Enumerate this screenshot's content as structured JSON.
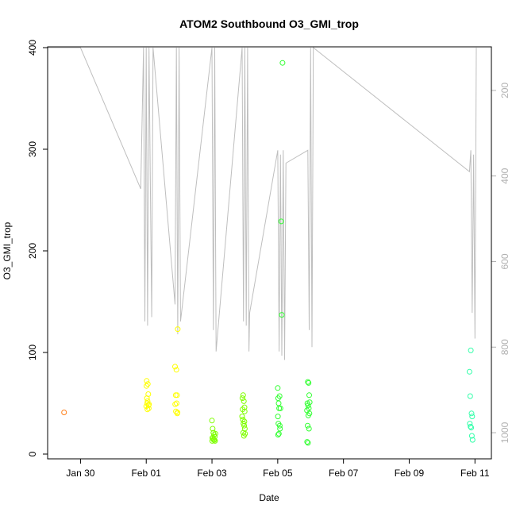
{
  "chart_data": {
    "type": "scatter",
    "title": "ATOM2 Southbound O3_GMI_trop",
    "xlabel": "Date",
    "ylabel": "O3_GMI_trop",
    "xlim": [
      "2017-01-29T00:00",
      "2017-02-11T12:00"
    ],
    "ylim": [
      0,
      400
    ],
    "x_ticks": [
      {
        "date": "2017-01-30",
        "label": "Jan 30"
      },
      {
        "date": "2017-02-01",
        "label": "Feb 01"
      },
      {
        "date": "2017-02-03",
        "label": "Feb 03"
      },
      {
        "date": "2017-02-05",
        "label": "Feb 05"
      },
      {
        "date": "2017-02-07",
        "label": "Feb 07"
      },
      {
        "date": "2017-02-09",
        "label": "Feb 09"
      },
      {
        "date": "2017-02-11",
        "label": "Feb 11"
      }
    ],
    "y_ticks": [
      0,
      100,
      200,
      300,
      400
    ],
    "y2_ticks": [
      200,
      400,
      600,
      800,
      1000
    ],
    "y2_range": [
      1050,
      100
    ],
    "grid": false,
    "series": [
      {
        "color": "#ff7f1a",
        "points": [
          [
            "2017-01-29T12:00",
            41
          ]
        ]
      },
      {
        "color": "#ffff00",
        "points": [
          [
            "2017-02-01T00:00",
            47
          ],
          [
            "2017-02-01T01:00",
            52
          ],
          [
            "2017-02-01T00:30",
            55
          ],
          [
            "2017-02-01T01:30",
            59
          ],
          [
            "2017-02-01T00:40",
            50
          ],
          [
            "2017-02-01T02:00",
            49
          ],
          [
            "2017-02-01T00:10",
            67
          ],
          [
            "2017-02-01T00:20",
            72
          ],
          [
            "2017-02-01T01:10",
            69
          ],
          [
            "2017-02-01T01:50",
            45
          ],
          [
            "2017-02-01T00:50",
            44
          ],
          [
            "2017-02-01T01:40",
            48
          ],
          [
            "2017-02-01T21:00",
            86
          ],
          [
            "2017-02-01T22:00",
            83
          ],
          [
            "2017-02-01T23:00",
            123
          ],
          [
            "2017-02-01T21:30",
            58
          ],
          [
            "2017-02-01T22:30",
            58
          ],
          [
            "2017-02-01T21:10",
            49
          ],
          [
            "2017-02-01T22:10",
            50
          ],
          [
            "2017-02-01T21:40",
            42
          ],
          [
            "2017-02-01T22:40",
            40
          ],
          [
            "2017-02-01T22:50",
            41
          ]
        ]
      },
      {
        "color": "#7fff00",
        "points": [
          [
            "2017-02-03T00:00",
            33
          ],
          [
            "2017-02-03T00:30",
            25
          ],
          [
            "2017-02-03T01:00",
            21
          ],
          [
            "2017-02-03T01:30",
            19
          ],
          [
            "2017-02-03T02:00",
            17
          ],
          [
            "2017-02-03T00:15",
            16
          ],
          [
            "2017-02-03T00:45",
            15
          ],
          [
            "2017-02-03T01:15",
            14
          ],
          [
            "2017-02-03T01:45",
            14
          ],
          [
            "2017-02-03T02:15",
            13
          ],
          [
            "2017-02-03T00:10",
            13
          ],
          [
            "2017-02-03T02:30",
            20
          ],
          [
            "2017-02-03T22:00",
            37
          ],
          [
            "2017-02-03T22:30",
            34
          ],
          [
            "2017-02-03T23:00",
            30
          ],
          [
            "2017-02-03T23:30",
            28
          ],
          [
            "2017-02-04T00:00",
            25
          ],
          [
            "2017-02-03T22:15",
            55
          ],
          [
            "2017-02-03T22:45",
            58
          ],
          [
            "2017-02-03T23:15",
            52
          ],
          [
            "2017-02-03T23:45",
            46
          ],
          [
            "2017-02-03T22:20",
            44
          ],
          [
            "2017-02-03T23:50",
            42
          ],
          [
            "2017-02-03T22:50",
            21
          ],
          [
            "2017-02-03T23:20",
            18
          ],
          [
            "2017-02-04T00:10",
            20
          ],
          [
            "2017-02-03T23:40",
            32
          ]
        ]
      },
      {
        "color": "#33ff33",
        "points": [
          [
            "2017-02-05T00:00",
            65
          ],
          [
            "2017-02-05T00:20",
            55
          ],
          [
            "2017-02-05T00:40",
            50
          ],
          [
            "2017-02-05T01:00",
            45
          ],
          [
            "2017-02-05T01:20",
            57
          ],
          [
            "2017-02-05T00:10",
            37
          ],
          [
            "2017-02-05T00:30",
            30
          ],
          [
            "2017-02-05T01:30",
            28
          ],
          [
            "2017-02-05T01:40",
            25
          ],
          [
            "2017-02-05T00:50",
            20
          ],
          [
            "2017-02-05T00:15",
            19
          ],
          [
            "2017-02-05T02:00",
            45
          ],
          [
            "2017-02-05T03:00",
            137
          ],
          [
            "2017-02-05T02:30",
            229
          ],
          [
            "2017-02-05T03:30",
            385
          ],
          [
            "2017-02-05T22:00",
            71
          ],
          [
            "2017-02-05T22:30",
            70
          ],
          [
            "2017-02-05T23:00",
            58
          ],
          [
            "2017-02-05T21:40",
            50
          ],
          [
            "2017-02-05T22:10",
            48
          ],
          [
            "2017-02-05T22:40",
            45
          ],
          [
            "2017-02-05T23:10",
            40
          ],
          [
            "2017-02-05T22:20",
            38
          ],
          [
            "2017-02-05T21:50",
            28
          ],
          [
            "2017-02-05T22:50",
            25
          ],
          [
            "2017-02-05T21:30",
            12
          ],
          [
            "2017-02-05T22:05",
            11
          ],
          [
            "2017-02-05T23:20",
            51
          ],
          [
            "2017-02-05T21:20",
            43
          ]
        ]
      },
      {
        "color": "#33ffaa",
        "points": [
          [
            "2017-02-10T20:00",
            81
          ],
          [
            "2017-02-10T20:30",
            57
          ],
          [
            "2017-02-10T21:00",
            102
          ],
          [
            "2017-02-10T21:30",
            40
          ],
          [
            "2017-02-10T22:00",
            37
          ],
          [
            "2017-02-10T20:15",
            30
          ],
          [
            "2017-02-10T20:45",
            27
          ],
          [
            "2017-02-10T21:15",
            26
          ],
          [
            "2017-02-10T21:45",
            18
          ],
          [
            "2017-02-10T22:15",
            14
          ]
        ]
      }
    ],
    "secondary_line": {
      "color": "#bebebe",
      "points": [
        [
          "2017-01-29T00:00",
          100
        ],
        [
          "2017-01-30T00:00",
          100
        ],
        [
          "2017-01-31T20:00",
          430
        ],
        [
          "2017-01-31T22:00",
          100
        ],
        [
          "2017-01-31T23:00",
          740
        ],
        [
          "2017-02-01T00:00",
          100
        ],
        [
          "2017-02-01T01:00",
          750
        ],
        [
          "2017-02-01T02:00",
          100
        ],
        [
          "2017-02-01T03:00",
          420
        ],
        [
          "2017-02-01T04:00",
          730
        ],
        [
          "2017-02-01T05:00",
          100
        ],
        [
          "2017-02-01T21:00",
          700
        ],
        [
          "2017-02-01T22:00",
          100
        ],
        [
          "2017-02-01T23:00",
          770
        ],
        [
          "2017-02-02T00:00",
          100
        ],
        [
          "2017-02-02T01:00",
          740
        ],
        [
          "2017-02-03T00:00",
          100
        ],
        [
          "2017-02-03T01:00",
          760
        ],
        [
          "2017-02-03T02:00",
          100
        ],
        [
          "2017-02-03T03:00",
          810
        ],
        [
          "2017-02-03T22:00",
          100
        ],
        [
          "2017-02-03T23:00",
          740
        ],
        [
          "2017-02-04T00:00",
          100
        ],
        [
          "2017-02-04T01:00",
          750
        ],
        [
          "2017-02-04T02:00",
          100
        ],
        [
          "2017-02-04T03:00",
          810
        ],
        [
          "2017-02-04T03:30",
          720
        ],
        [
          "2017-02-05T00:00",
          340
        ],
        [
          "2017-02-05T01:00",
          810
        ],
        [
          "2017-02-05T02:00",
          350
        ],
        [
          "2017-02-05T03:00",
          820
        ],
        [
          "2017-02-05T04:00",
          340
        ],
        [
          "2017-02-05T05:00",
          830
        ],
        [
          "2017-02-05T06:00",
          370
        ],
        [
          "2017-02-05T22:00",
          340
        ],
        [
          "2017-02-05T23:00",
          760
        ],
        [
          "2017-02-06T00:00",
          100
        ],
        [
          "2017-02-06T01:00",
          800
        ],
        [
          "2017-02-06T02:00",
          100
        ],
        [
          "2017-02-10T20:00",
          390
        ],
        [
          "2017-02-10T21:00",
          340
        ],
        [
          "2017-02-10T22:00",
          720
        ],
        [
          "2017-02-10T23:00",
          350
        ],
        [
          "2017-02-11T00:00",
          780
        ],
        [
          "2017-02-11T01:00",
          100
        ]
      ]
    }
  }
}
